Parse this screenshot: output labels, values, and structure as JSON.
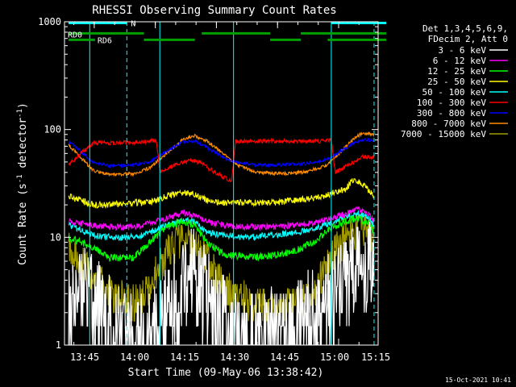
{
  "chart_data": {
    "type": "line",
    "title": "RHESSI Observing Summary Count Rates",
    "xlabel": "Start Time (09-May-06 13:38:42)",
    "ylabel_main": "Count Rate (s",
    "ylabel_sup1": "-1",
    "ylabel_mid": " detector",
    "ylabel_sup2": "-1",
    "ylabel_end": ")",
    "yscale": "log",
    "ylim": [
      1,
      1000
    ],
    "xlim_minutes": [
      -1,
      76
    ],
    "x_ticks": [
      {
        "t": 6.3,
        "label": "13:45"
      },
      {
        "t": 21.3,
        "label": "14:00"
      },
      {
        "t": 36.3,
        "label": "14:15"
      },
      {
        "t": 51.3,
        "label": "14:30"
      },
      {
        "t": 66.3,
        "label": "14:45"
      },
      {
        "t": 81.3,
        "label": "15:00"
      },
      {
        "t": 96.3,
        "label": "15:15"
      }
    ],
    "y_ticks": [
      {
        "v": 1,
        "label": "1"
      },
      {
        "v": 10,
        "label": "10"
      },
      {
        "v": 100,
        "label": "100"
      },
      {
        "v": 1000,
        "label": "1000"
      }
    ],
    "legend_header": [
      "Det 1,3,4,5,6,9,",
      "FDecim 2, Att 0"
    ],
    "flags": [
      {
        "name": "N",
        "color": "#00ffff",
        "level": 975,
        "segments": [
          [
            0,
            14.3
          ],
          [
            64.5,
            78.0
          ]
        ]
      },
      {
        "name": "RD0",
        "color": "#00a000",
        "level": 780,
        "segments": [
          [
            0,
            18.5
          ],
          [
            32.7,
            49.5
          ],
          [
            57.0,
            78.0
          ]
        ]
      },
      {
        "name": "RD6",
        "color": "#00a000",
        "level": 680,
        "segments": [
          [
            0,
            6.5
          ],
          [
            18.5,
            31.0
          ],
          [
            49.5,
            57.0
          ],
          [
            63.6,
            78.0
          ]
        ]
      }
    ],
    "cyan_lines": [
      {
        "t": 5.2,
        "style": "solid"
      },
      {
        "t": 14.3,
        "style": "dashed"
      },
      {
        "t": 22.4,
        "style": "solid"
      },
      {
        "t": 40.5,
        "style": "solid"
      },
      {
        "t": 64.5,
        "style": "solid"
      },
      {
        "t": 75.0,
        "style": "dashed"
      }
    ],
    "series": [
      {
        "name": "3 - 6 keV",
        "color": "#ffffff",
        "points": [
          [
            0,
            3.0
          ],
          [
            6,
            2.8
          ],
          [
            10,
            1.6
          ],
          [
            16,
            1.0
          ],
          [
            20,
            1.2
          ],
          [
            24,
            2.0
          ],
          [
            29,
            4.2
          ],
          [
            31,
            4.5
          ],
          [
            33,
            3.2
          ],
          [
            36,
            2.0
          ],
          [
            40,
            1.3
          ],
          [
            44,
            1.0
          ],
          [
            50,
            1.3
          ],
          [
            56,
            1.5
          ],
          [
            60,
            1.8
          ],
          [
            64,
            2.5
          ],
          [
            68,
            4.2
          ],
          [
            72,
            5.8
          ],
          [
            75,
            4.5
          ]
        ]
      },
      {
        "name": "6 - 12 keV",
        "color": "#ff00ff",
        "points": [
          [
            0,
            14
          ],
          [
            6,
            13
          ],
          [
            10,
            12.5
          ],
          [
            16,
            12.5
          ],
          [
            20,
            13.5
          ],
          [
            24,
            15
          ],
          [
            28,
            17
          ],
          [
            31,
            16
          ],
          [
            34,
            14
          ],
          [
            38,
            13
          ],
          [
            44,
            12.5
          ],
          [
            50,
            12.5
          ],
          [
            56,
            13
          ],
          [
            60,
            13.5
          ],
          [
            64,
            15
          ],
          [
            68,
            16.5
          ],
          [
            71,
            18
          ],
          [
            74,
            16
          ],
          [
            75,
            14
          ]
        ]
      },
      {
        "name": "12 - 25 keV",
        "color": "#00ff00",
        "points": [
          [
            0,
            10
          ],
          [
            6,
            8
          ],
          [
            10,
            6.5
          ],
          [
            16,
            6.5
          ],
          [
            20,
            9
          ],
          [
            24,
            12.5
          ],
          [
            28,
            14
          ],
          [
            31,
            13
          ],
          [
            34,
            9
          ],
          [
            38,
            7
          ],
          [
            44,
            6.5
          ],
          [
            50,
            6.8
          ],
          [
            56,
            7.5
          ],
          [
            60,
            9
          ],
          [
            64,
            12
          ],
          [
            68,
            14
          ],
          [
            71,
            15
          ],
          [
            74,
            13
          ],
          [
            75,
            11
          ]
        ]
      },
      {
        "name": "25 - 50 keV",
        "color": "#ffff00",
        "points": [
          [
            0,
            24
          ],
          [
            6,
            20
          ],
          [
            10,
            20
          ],
          [
            16,
            21
          ],
          [
            20,
            21
          ],
          [
            24,
            24
          ],
          [
            28,
            26
          ],
          [
            31,
            25
          ],
          [
            34,
            22
          ],
          [
            38,
            21
          ],
          [
            44,
            21
          ],
          [
            50,
            21
          ],
          [
            56,
            22
          ],
          [
            60,
            23
          ],
          [
            64,
            25
          ],
          [
            68,
            28
          ],
          [
            70,
            35
          ],
          [
            72,
            32
          ],
          [
            75,
            24
          ]
        ]
      },
      {
        "name": "50 - 100 keV",
        "color": "#00ffff",
        "points": [
          [
            0,
            13
          ],
          [
            6,
            10.5
          ],
          [
            10,
            10
          ],
          [
            16,
            10
          ],
          [
            20,
            11
          ],
          [
            24,
            13
          ],
          [
            28,
            14.5
          ],
          [
            31,
            14
          ],
          [
            34,
            11
          ],
          [
            38,
            10.5
          ],
          [
            44,
            10
          ],
          [
            50,
            10.5
          ],
          [
            56,
            11
          ],
          [
            60,
            12
          ],
          [
            64,
            13.5
          ],
          [
            68,
            15.5
          ],
          [
            71,
            16.5
          ],
          [
            74,
            15
          ],
          [
            75,
            13
          ]
        ]
      },
      {
        "name": "100 - 300 keV",
        "color": "#ff0000",
        "points": [
          [
            0,
            47
          ],
          [
            6,
            75
          ],
          [
            10,
            75
          ],
          [
            16,
            76
          ],
          [
            20,
            78
          ],
          [
            21.5,
            80
          ],
          [
            22.5,
            40
          ],
          [
            26,
            47
          ],
          [
            30,
            52
          ],
          [
            32,
            50
          ],
          [
            36,
            40
          ],
          [
            40,
            33
          ],
          [
            41,
            78
          ],
          [
            46,
            78
          ],
          [
            52,
            78
          ],
          [
            58,
            78
          ],
          [
            63,
            78
          ],
          [
            64.5,
            80
          ],
          [
            65.5,
            40
          ],
          [
            70,
            50
          ],
          [
            72,
            56
          ],
          [
            75,
            55
          ]
        ]
      },
      {
        "name": "300 - 800 keV",
        "color": "#0000ff",
        "points": [
          [
            0,
            78
          ],
          [
            6,
            50
          ],
          [
            10,
            46
          ],
          [
            16,
            47
          ],
          [
            20,
            50
          ],
          [
            24,
            62
          ],
          [
            28,
            77
          ],
          [
            31,
            78
          ],
          [
            34,
            68
          ],
          [
            38,
            55
          ],
          [
            41,
            50
          ],
          [
            46,
            47
          ],
          [
            52,
            47
          ],
          [
            58,
            48
          ],
          [
            63,
            52
          ],
          [
            66,
            60
          ],
          [
            70,
            75
          ],
          [
            72,
            80
          ],
          [
            75,
            80
          ]
        ]
      },
      {
        "name": "800 - 7000 keV",
        "color": "#ff8c00",
        "points": [
          [
            0,
            72
          ],
          [
            6,
            42
          ],
          [
            10,
            38
          ],
          [
            16,
            39
          ],
          [
            20,
            44
          ],
          [
            24,
            60
          ],
          [
            28,
            80
          ],
          [
            31,
            88
          ],
          [
            34,
            78
          ],
          [
            38,
            60
          ],
          [
            41,
            48
          ],
          [
            46,
            40
          ],
          [
            52,
            39
          ],
          [
            58,
            40
          ],
          [
            63,
            46
          ],
          [
            66,
            58
          ],
          [
            70,
            82
          ],
          [
            72,
            92
          ],
          [
            75,
            90
          ]
        ]
      },
      {
        "name": "7000 - 15000 keV",
        "color": "#a09a00",
        "points": [
          [
            0,
            7.5
          ],
          [
            6,
            4.5
          ],
          [
            10,
            3.0
          ],
          [
            16,
            2.4
          ],
          [
            20,
            3.5
          ],
          [
            24,
            7
          ],
          [
            28,
            10
          ],
          [
            31,
            9
          ],
          [
            34,
            6
          ],
          [
            38,
            3.5
          ],
          [
            44,
            2.5
          ],
          [
            50,
            2.3
          ],
          [
            56,
            2.4
          ],
          [
            60,
            3.0
          ],
          [
            64,
            6
          ],
          [
            68,
            10
          ],
          [
            71,
            12
          ],
          [
            74,
            11
          ],
          [
            75,
            9
          ]
        ]
      }
    ]
  },
  "footer_timestamp": "15-Oct-2021 10:41"
}
